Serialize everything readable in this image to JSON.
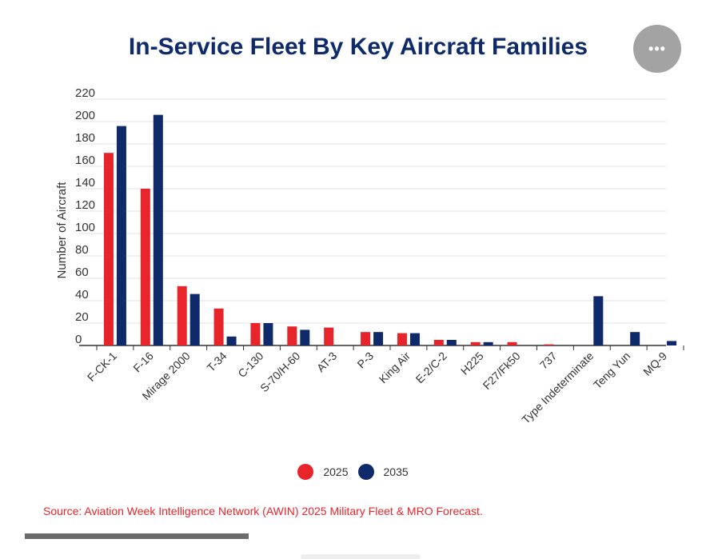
{
  "header": {
    "title": "In-Service Fleet By Key Aircraft Families",
    "menu_icon": "more-horizontal-icon",
    "menu_label": "•••"
  },
  "colors": {
    "s2025": "#e8242b",
    "s2035": "#0e2a6b",
    "title": "#0e2a6b",
    "source": "#e8242b"
  },
  "chart_data": {
    "type": "bar",
    "title": "In-Service Fleet By Key Aircraft Families",
    "xlabel": "",
    "ylabel": "Number of Aircraft",
    "ylim": [
      0,
      220
    ],
    "yticks": [
      0,
      20,
      40,
      60,
      80,
      100,
      120,
      140,
      160,
      180,
      200,
      220
    ],
    "grid": true,
    "legend_position": "bottom-center",
    "categories": [
      "F-CK-1",
      "F-16",
      "Mirage 2000",
      "T-34",
      "C-130",
      "S-70/H-60",
      "AT-3",
      "P-3",
      "King Air",
      "E-2/C-2",
      "H225",
      "F27/Fk50",
      "737",
      "Type Indeterminate",
      "Teng Yun",
      "MQ-9"
    ],
    "series": [
      {
        "name": "2025",
        "values": [
          172,
          140,
          53,
          33,
          20,
          17,
          16,
          12,
          11,
          5,
          3,
          3,
          1,
          0,
          0,
          0
        ]
      },
      {
        "name": "2035",
        "values": [
          196,
          206,
          46,
          8,
          20,
          14,
          0,
          12,
          11,
          5,
          3,
          0,
          0,
          44,
          12,
          4
        ]
      }
    ]
  },
  "legend": {
    "items": [
      {
        "label": "2025"
      },
      {
        "label": "2035"
      }
    ]
  },
  "source": "Source: Aviation Week Intelligence Network (AWIN) 2025 Military Fleet & MRO Forecast."
}
